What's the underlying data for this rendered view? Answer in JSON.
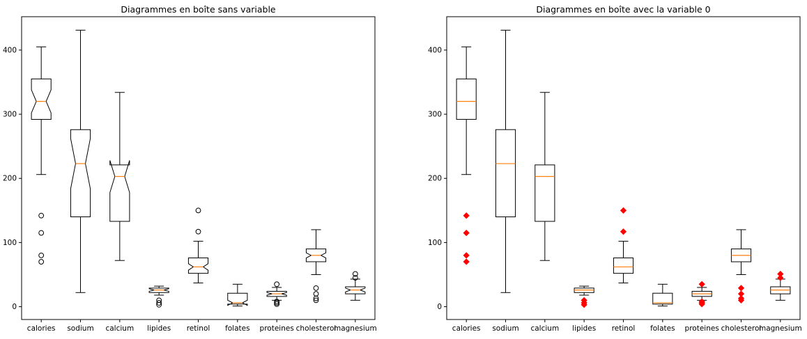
{
  "chart_data": [
    {
      "type": "box",
      "title": "Diagrammes en boîte sans variable",
      "notched": true,
      "outlier_marker": "hollow-circle",
      "ylim": [
        -20,
        452
      ],
      "yticks": [
        0,
        100,
        200,
        300,
        400
      ],
      "categories": [
        "calories",
        "sodium",
        "calcium",
        "lipides",
        "retinol",
        "folates",
        "proteines",
        "cholesterol",
        "magnesium"
      ],
      "boxes": [
        {
          "whislo": 206,
          "q1": 292,
          "med": 320,
          "q3": 355,
          "whishi": 405,
          "notch": [
            302,
            338
          ],
          "fliers": [
            142,
            115,
            80,
            70
          ]
        },
        {
          "whislo": 22,
          "q1": 140,
          "med": 223,
          "q3": 276,
          "whishi": 431,
          "notch": [
            184,
            262
          ],
          "fliers": []
        },
        {
          "whislo": 72,
          "q1": 133,
          "med": 203,
          "q3": 221,
          "whishi": 334,
          "notch": [
            178,
            228
          ],
          "fliers": []
        },
        {
          "whislo": 18,
          "q1": 22,
          "med": 26,
          "q3": 29,
          "whishi": 32,
          "notch": [
            24,
            28
          ],
          "fliers": [
            10,
            6,
            3
          ]
        },
        {
          "whislo": 37,
          "q1": 52,
          "med": 62,
          "q3": 76,
          "whishi": 102,
          "notch": [
            57,
            67
          ],
          "fliers": [
            150,
            117
          ]
        },
        {
          "whislo": 1,
          "q1": 4,
          "med": 6,
          "q3": 21,
          "whishi": 35,
          "notch": [
            2,
            10
          ],
          "fliers": []
        },
        {
          "whislo": 10,
          "q1": 16,
          "med": 20,
          "q3": 24,
          "whishi": 30,
          "notch": [
            18,
            22
          ],
          "fliers": [
            35,
            8,
            6,
            4
          ]
        },
        {
          "whislo": 50,
          "q1": 70,
          "med": 80,
          "q3": 90,
          "whishi": 120,
          "notch": [
            76,
            84
          ],
          "fliers": [
            29,
            20,
            13,
            10
          ]
        },
        {
          "whislo": 10,
          "q1": 20,
          "med": 26,
          "q3": 31,
          "whishi": 43,
          "notch": [
            23,
            29
          ],
          "fliers": [
            51,
            45
          ]
        }
      ]
    },
    {
      "type": "box",
      "title": "Diagrammes en boîte avec la variable 0",
      "notched": false,
      "outlier_marker": "red-diamond",
      "outlier_color": "#ff0000",
      "median_color": "#ff7f0e",
      "ylim": [
        -20,
        452
      ],
      "yticks": [
        0,
        100,
        200,
        300,
        400
      ],
      "categories": [
        "calories",
        "sodium",
        "calcium",
        "lipides",
        "retinol",
        "folates",
        "proteines",
        "cholesterol",
        "magnesium"
      ],
      "boxes": [
        {
          "whislo": 206,
          "q1": 292,
          "med": 320,
          "q3": 355,
          "whishi": 405,
          "fliers": [
            142,
            115,
            80,
            70
          ]
        },
        {
          "whislo": 22,
          "q1": 140,
          "med": 223,
          "q3": 276,
          "whishi": 431,
          "fliers": []
        },
        {
          "whislo": 72,
          "q1": 133,
          "med": 203,
          "q3": 221,
          "whishi": 334,
          "fliers": []
        },
        {
          "whislo": 18,
          "q1": 22,
          "med": 26,
          "q3": 29,
          "whishi": 32,
          "fliers": [
            10,
            6,
            3
          ]
        },
        {
          "whislo": 37,
          "q1": 52,
          "med": 62,
          "q3": 76,
          "whishi": 102,
          "fliers": [
            150,
            117
          ]
        },
        {
          "whislo": 1,
          "q1": 4,
          "med": 6,
          "q3": 21,
          "whishi": 35,
          "fliers": []
        },
        {
          "whislo": 10,
          "q1": 16,
          "med": 20,
          "q3": 24,
          "whishi": 30,
          "fliers": [
            35,
            8,
            6,
            4
          ]
        },
        {
          "whislo": 50,
          "q1": 70,
          "med": 80,
          "q3": 90,
          "whishi": 120,
          "fliers": [
            29,
            20,
            13,
            10
          ]
        },
        {
          "whislo": 10,
          "q1": 20,
          "med": 26,
          "q3": 31,
          "whishi": 43,
          "fliers": [
            51,
            45
          ]
        }
      ]
    }
  ]
}
